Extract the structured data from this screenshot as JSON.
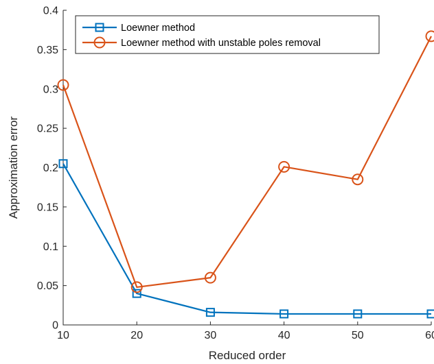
{
  "chart_data": {
    "type": "line",
    "xlabel": "Reduced order",
    "ylabel": "Approximation error",
    "xlim": [
      10,
      60
    ],
    "ylim": [
      0,
      0.4
    ],
    "xticks": [
      10,
      20,
      30,
      40,
      50,
      60
    ],
    "yticks": [
      0,
      0.05,
      0.1,
      0.15,
      0.2,
      0.25,
      0.3,
      0.35,
      0.4
    ],
    "xtick_labels": [
      "10",
      "20",
      "30",
      "40",
      "50",
      "60"
    ],
    "ytick_labels": [
      "0",
      "0.05",
      "0.1",
      "0.15",
      "0.2",
      "0.25",
      "0.3",
      "0.35",
      "0.4"
    ],
    "grid": false,
    "legend_position": "top-left",
    "series": [
      {
        "name": "Loewner method",
        "color": "#0072BD",
        "marker": "square",
        "x": [
          10,
          20,
          30,
          40,
          50,
          60
        ],
        "y": [
          0.205,
          0.04,
          0.016,
          0.014,
          0.014,
          0.014
        ]
      },
      {
        "name": "Loewner method with unstable poles removal",
        "color": "#D95319",
        "marker": "circle",
        "x": [
          10,
          20,
          30,
          40,
          50,
          60
        ],
        "y": [
          0.305,
          0.048,
          0.06,
          0.201,
          0.185,
          0.367
        ]
      }
    ]
  }
}
